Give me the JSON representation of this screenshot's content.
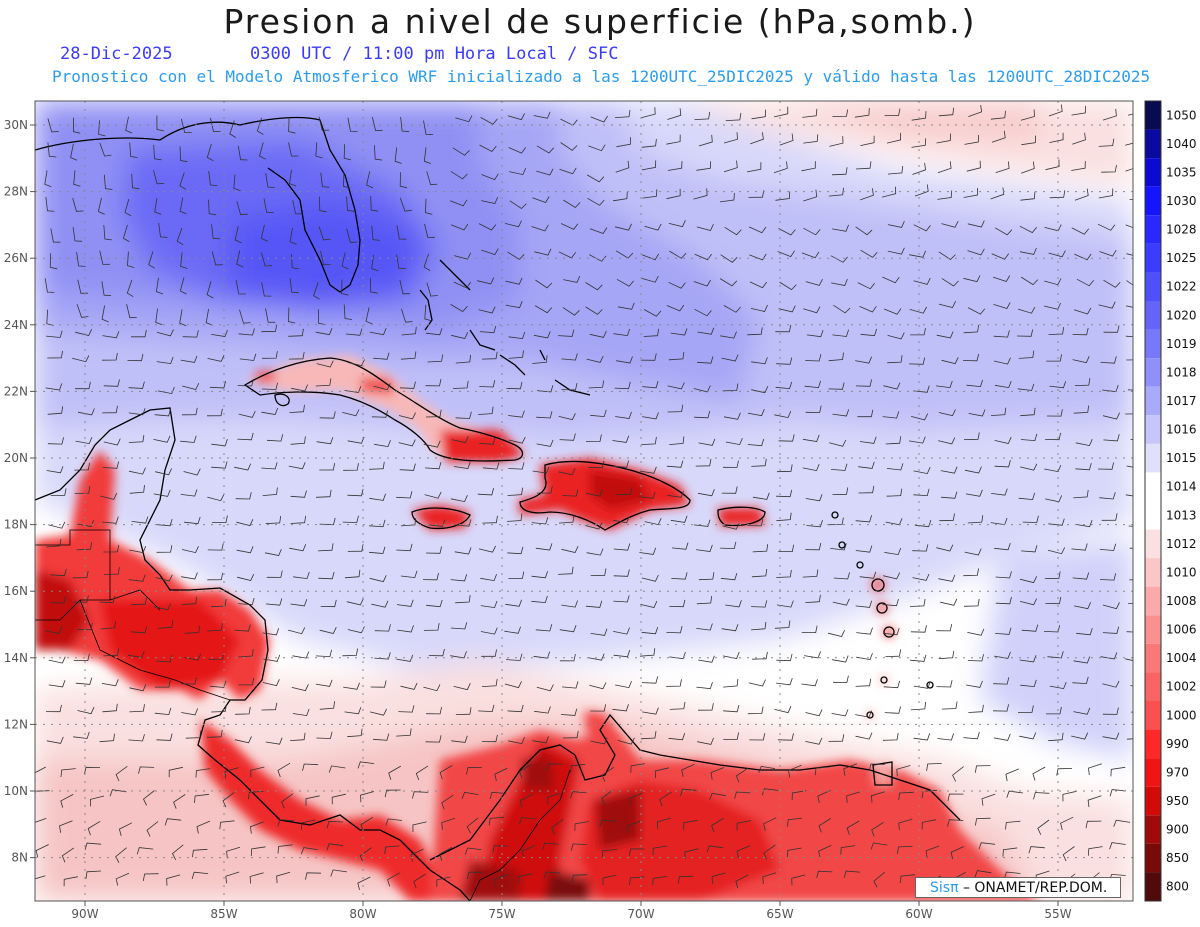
{
  "title": "Presion a nivel de superficie (hPa,somb.)",
  "date": "28-Dic-2025",
  "time_info": "0300 UTC / 11:00 pm Hora Local / SFC",
  "model_info": "Pronostico con el Modelo Atmosferico WRF inicializado a las 1200UTC_25DIC2025 y válido hasta las  1200UTC_28DIC2025",
  "credit": {
    "logo": "Sisπ",
    "text": "– ONAMET/REP.DOM."
  },
  "lat_labels": [
    "30N",
    "28N",
    "26N",
    "24N",
    "22N",
    "20N",
    "18N",
    "16N",
    "14N",
    "12N",
    "10N",
    "8N"
  ],
  "lon_labels": [
    "90W",
    "85W",
    "80W",
    "75W",
    "70W",
    "65W",
    "60W",
    "55W"
  ],
  "colorbar": {
    "levels": [
      "1050",
      "1040",
      "1035",
      "1030",
      "1028",
      "1025",
      "1022",
      "1020",
      "1019",
      "1018",
      "1017",
      "1016",
      "1015",
      "1014",
      "1013",
      "1012",
      "1010",
      "1008",
      "1006",
      "1004",
      "1002",
      "1000",
      "990",
      "970",
      "950",
      "900",
      "850",
      "800"
    ],
    "colors": [
      "#0a0a50",
      "#0a0aa0",
      "#0a0ad2",
      "#1414ff",
      "#2828ff",
      "#3c3cff",
      "#5050fa",
      "#6464fa",
      "#7878fa",
      "#9090fa",
      "#aaaafa",
      "#c6c6fa",
      "#e0e0fa",
      "#ffffff",
      "#ffffff",
      "#fae0e0",
      "#fac6c6",
      "#faaaaa",
      "#fa9090",
      "#fa7878",
      "#fa6464",
      "#fa5050",
      "#ff2828",
      "#f01414",
      "#d20a0a",
      "#a00a0a",
      "#780a0a",
      "#500a0a"
    ]
  }
}
